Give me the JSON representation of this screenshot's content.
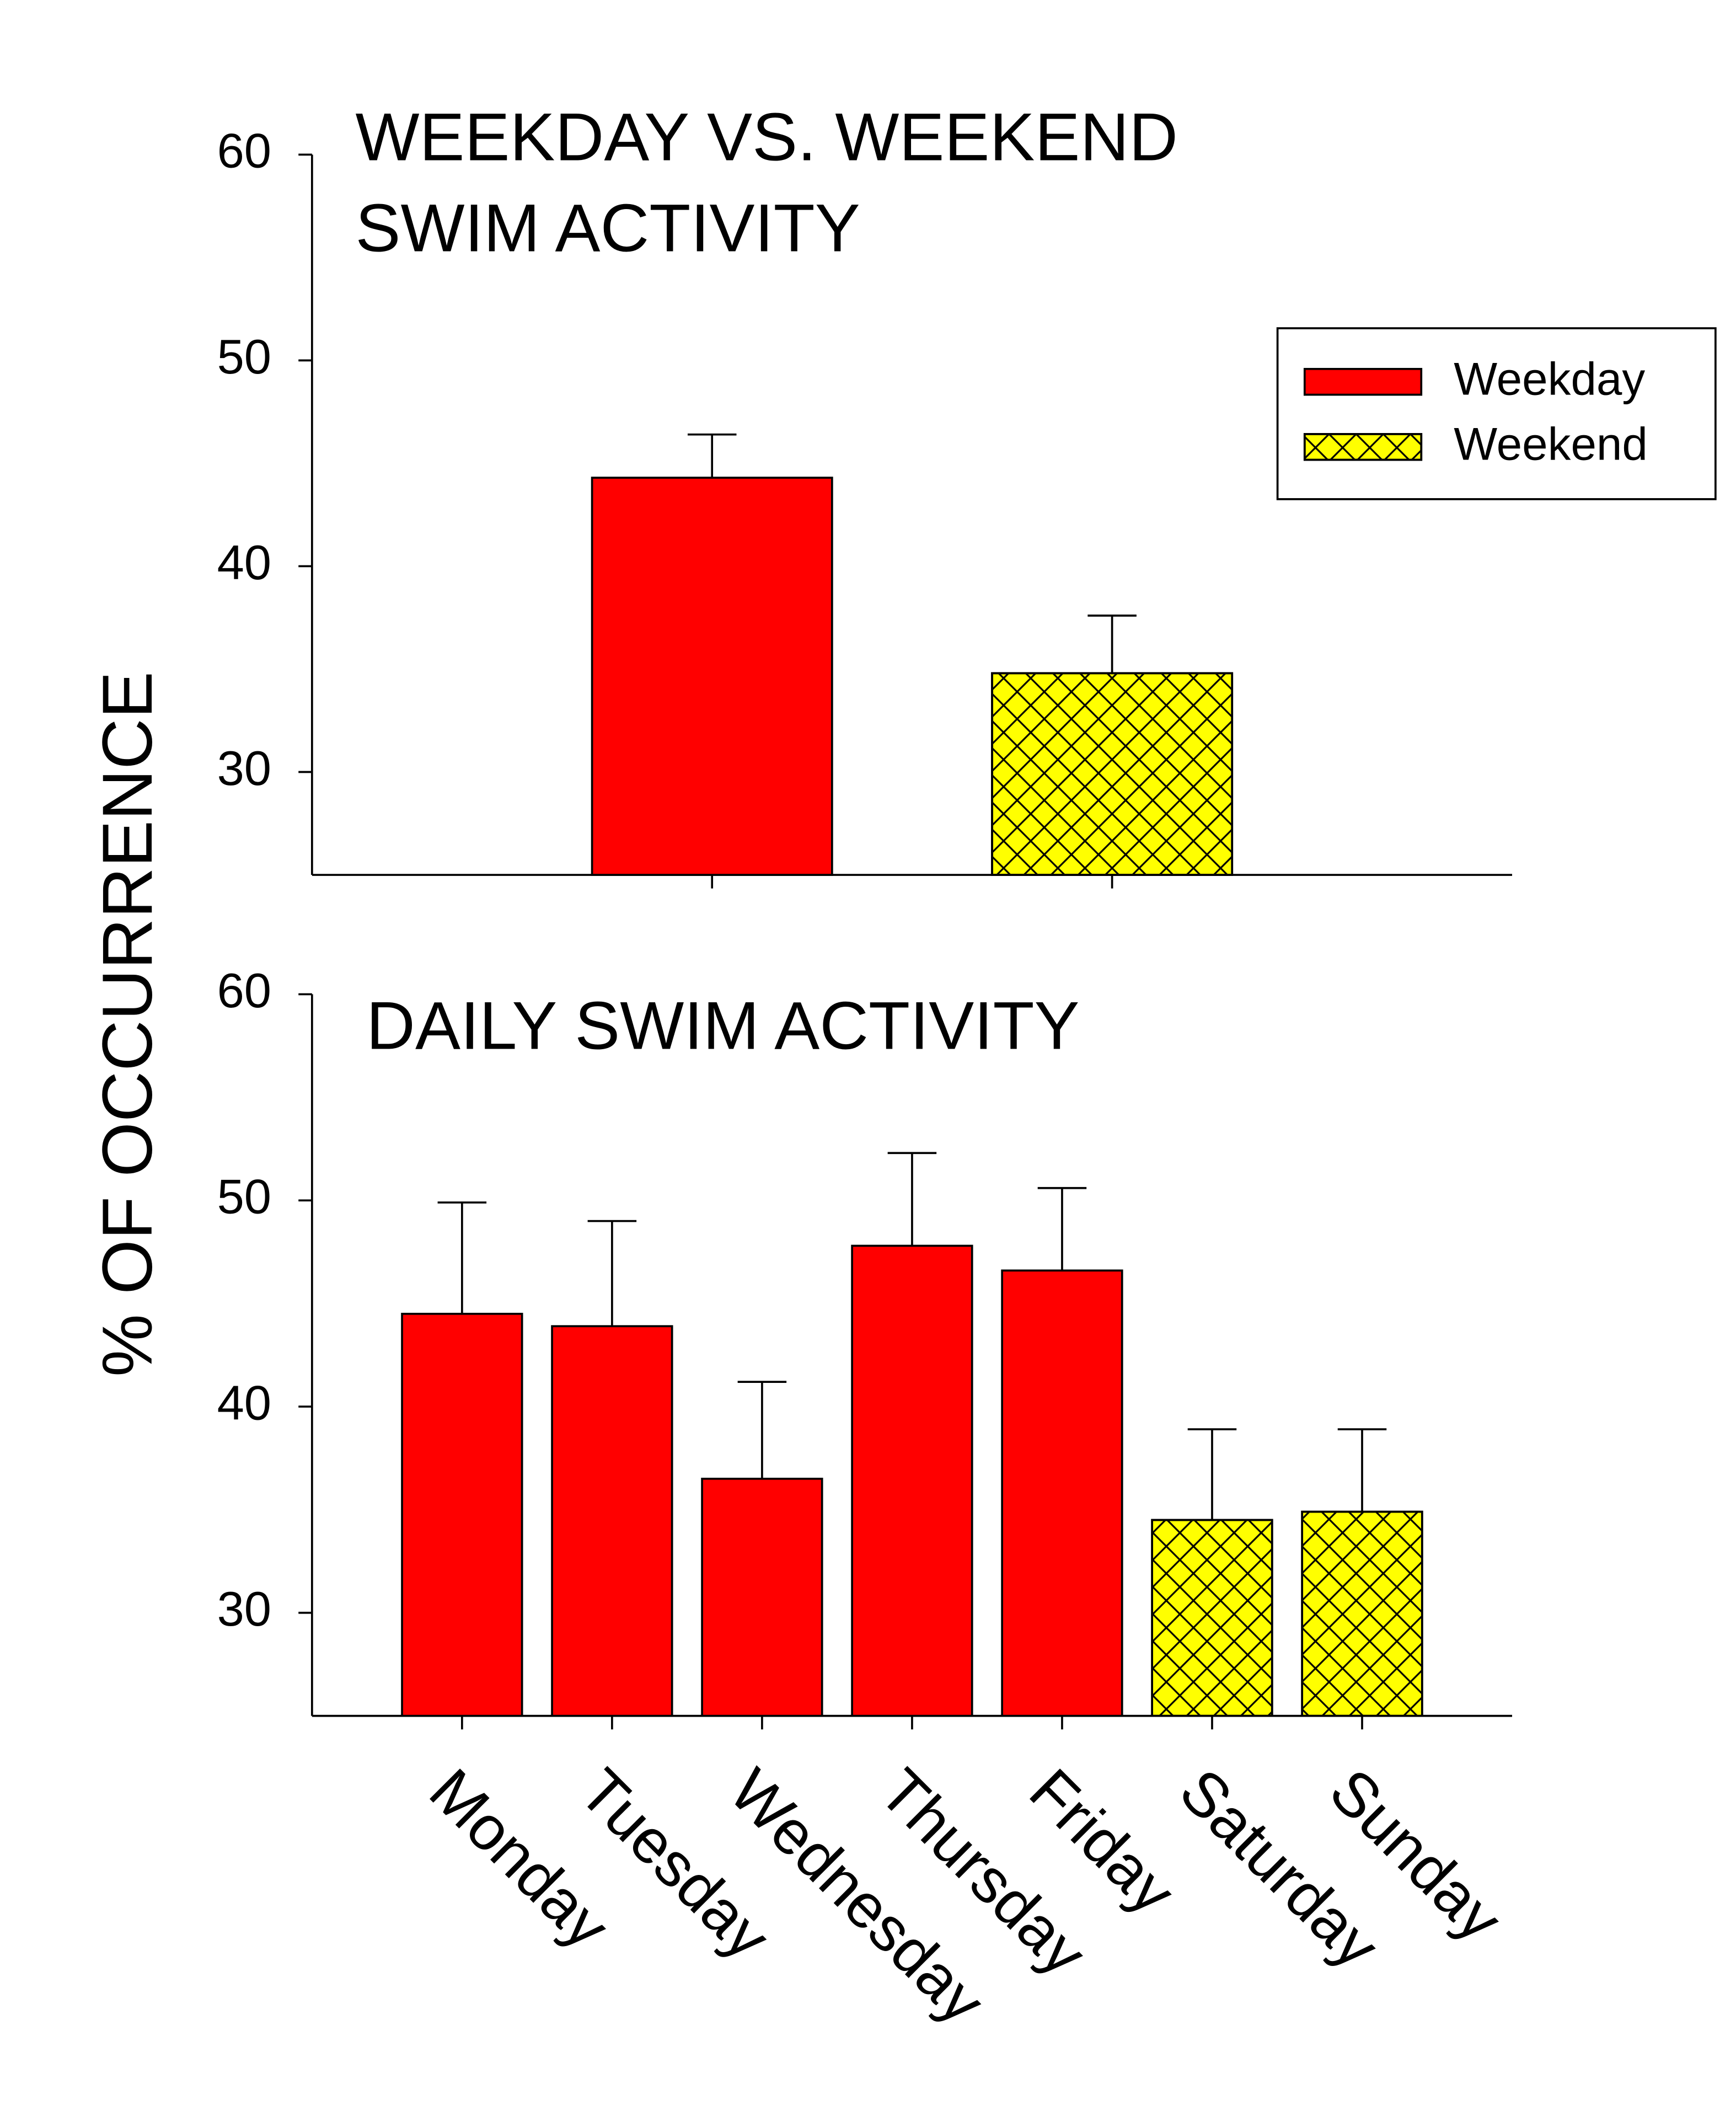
{
  "ylabel": "% OF OCCURRENCE",
  "chart_data": [
    {
      "type": "bar",
      "title": [
        "WEEKDAY VS. WEEKEND",
        "SWIM ACTIVITY"
      ],
      "categories": [
        null,
        null
      ],
      "series": [
        {
          "name": "Weekday",
          "color": "#ff0000",
          "hatch": false,
          "values": [
            44.3,
            null
          ],
          "errors": [
            2.1,
            null
          ]
        },
        {
          "name": "Weekend",
          "color": "#ffff00",
          "hatch": true,
          "values": [
            null,
            34.8
          ],
          "errors": [
            null,
            2.8
          ]
        }
      ],
      "ylim": [
        25,
        60
      ],
      "yticks": [
        30,
        40,
        50,
        60
      ],
      "legend": "upper right"
    },
    {
      "type": "bar",
      "title": [
        "DAILY SWIM ACTIVITY"
      ],
      "categories": [
        "Monday",
        "Tuesday",
        "Wednesday",
        "Thursday",
        "Friday",
        "Saturday",
        "Sunday"
      ],
      "values": [
        44.5,
        43.9,
        36.5,
        47.8,
        46.6,
        34.5,
        34.9
      ],
      "errors": [
        5.4,
        5.1,
        4.7,
        4.5,
        4.0,
        4.4,
        4.0
      ],
      "colors": [
        "#ff0000",
        "#ff0000",
        "#ff0000",
        "#ff0000",
        "#ff0000",
        "#ffff00",
        "#ffff00"
      ],
      "hatch": [
        false,
        false,
        false,
        false,
        false,
        true,
        true
      ],
      "ylim": [
        25,
        60
      ],
      "yticks": [
        30,
        40,
        50,
        60
      ]
    }
  ]
}
